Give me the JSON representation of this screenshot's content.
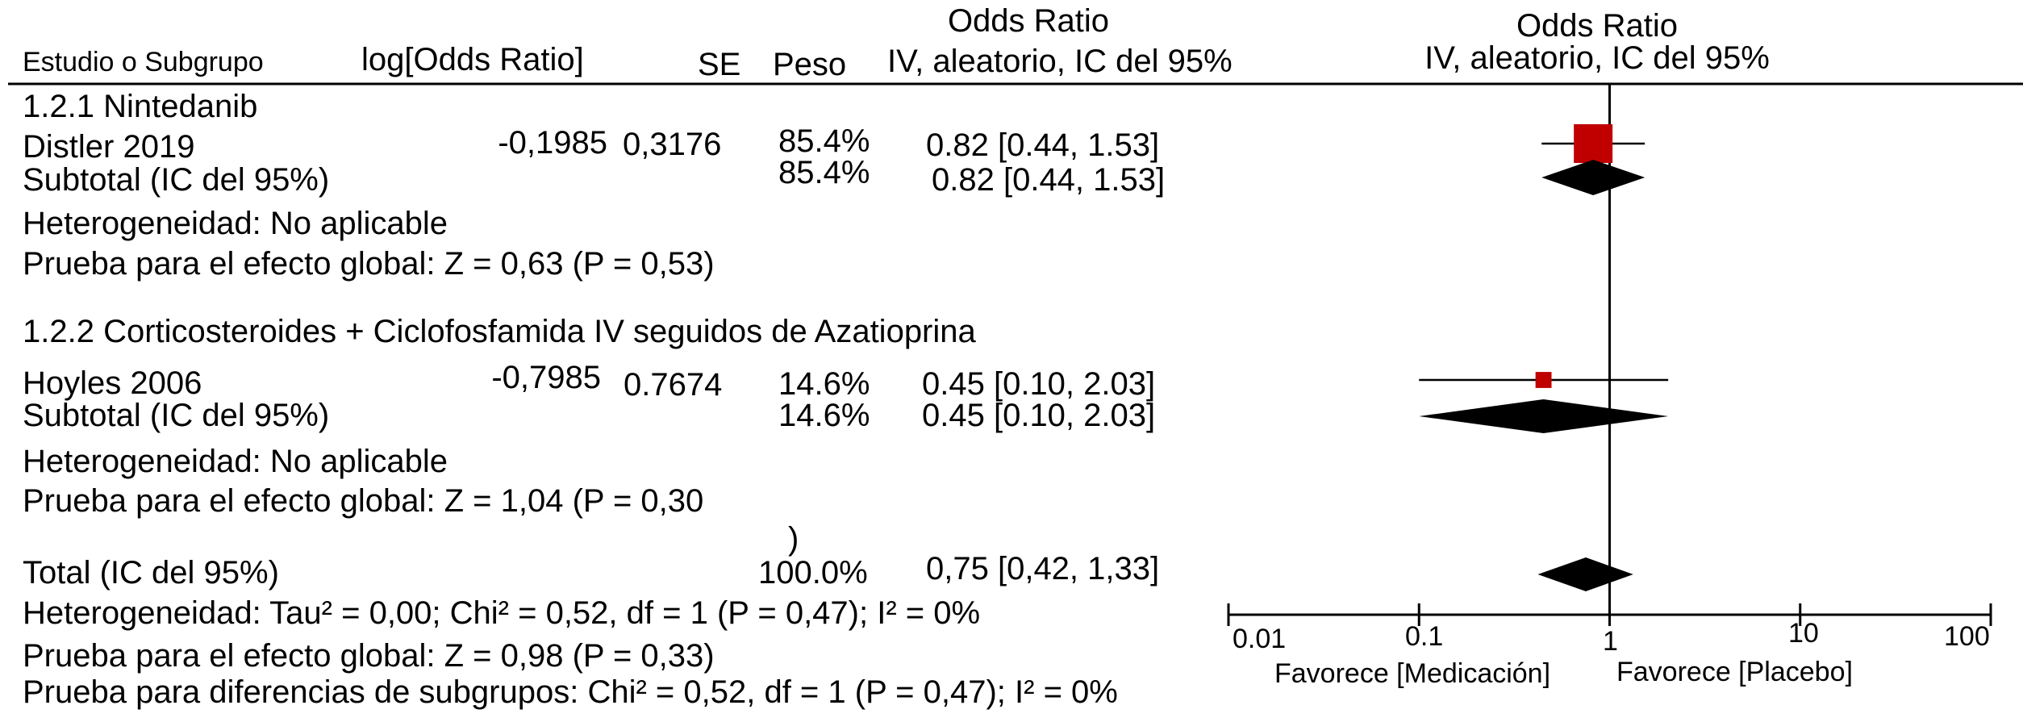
{
  "headers": {
    "study": "Estudio o Subgrupo",
    "log_or": "log[Odds Ratio]",
    "se": "SE",
    "weight": "Peso",
    "or_title": "Odds Ratio",
    "or_method": "IV, aleatorio, IC del 95%",
    "plot_title": "Odds Ratio",
    "plot_method": "IV, aleatorio, IC del 95%"
  },
  "subgroups": [
    {
      "label": "1.2.1 Nintedanib",
      "study": {
        "name": "Distler 2019",
        "log_or": "-0,1985",
        "se": "0,3176",
        "weight": "85.4%",
        "ci_text": "0.82 [0.44, 1.53]"
      },
      "subtotal": {
        "label": "Subtotal (IC del 95%)",
        "weight": "85.4%",
        "ci_text": "0.82 [0.44, 1.53]"
      },
      "heterogeneity": "Heterogeneidad: No aplicable",
      "overall_effect": "Prueba para el efecto global: Z =  0,63 (P = 0,53)"
    },
    {
      "label": "1.2.2 Corticosteroides + Ciclofosfamida IV seguidos de Azatioprina",
      "study": {
        "name": "Hoyles 2006",
        "log_or": "-0,7985",
        "se": "0.7674",
        "weight": "14.6%",
        "ci_text": "0.45 [0.10, 2.03]"
      },
      "subtotal": {
        "label": "Subtotal (IC del 95%)",
        "weight": "14.6%",
        "ci_text": "0.45 [0.10, 2.03]"
      },
      "heterogeneity": "Heterogeneidad: No aplicable",
      "overall_effect": "Prueba para el efecto global: Z = 1,04 (P = 0,30",
      "overall_effect_wrap": ")"
    }
  ],
  "total": {
    "label": "Total (IC del 95%)",
    "weight": "100.0%",
    "ci_text": "0,75 [0,42, 1,33]",
    "heterogeneity": "Heterogeneidad: Tau² = 0,00; Chi² = 0,52, df = 1 (P = 0,47); I² = 0%",
    "overall_effect": "Prueba para el efecto global: Z = 0,98 (P = 0,33)",
    "subgroup_diff": "Prueba para diferencias de subgrupos: Chi² = 0,52, df = 1 (P = 0,47); I² = 0%"
  },
  "axis": {
    "ticks": [
      "0.01",
      "0.1",
      "1",
      "10",
      "100"
    ],
    "favours_left": "Favorece [Medicación]",
    "favours_right": "Favorece [Placebo]"
  },
  "chart_data": {
    "type": "forest",
    "scale": "log",
    "xlim": [
      0.01,
      100
    ],
    "reference_line": 1,
    "colors": {
      "study_marker": "#c00000",
      "summary_diamond": "#000000"
    },
    "studies": [
      {
        "name": "Distler 2019",
        "or": 0.82,
        "lower": 0.44,
        "upper": 1.53,
        "weight": 85.4
      },
      {
        "name": "Hoyles 2006",
        "or": 0.45,
        "lower": 0.1,
        "upper": 2.03,
        "weight": 14.6
      }
    ],
    "summaries": [
      {
        "name": "Subtotal (IC del 95%)",
        "group": "1.2.1 Nintedanib",
        "or": 0.82,
        "lower": 0.44,
        "upper": 1.53
      },
      {
        "name": "Subtotal (IC del 95%)",
        "group": "1.2.2 Corticosteroides + Ciclofosfamida IV seguidos de Azatioprina",
        "or": 0.45,
        "lower": 0.1,
        "upper": 2.03
      },
      {
        "name": "Total (IC del 95%)",
        "or": 0.75,
        "lower": 0.42,
        "upper": 1.33
      }
    ]
  }
}
